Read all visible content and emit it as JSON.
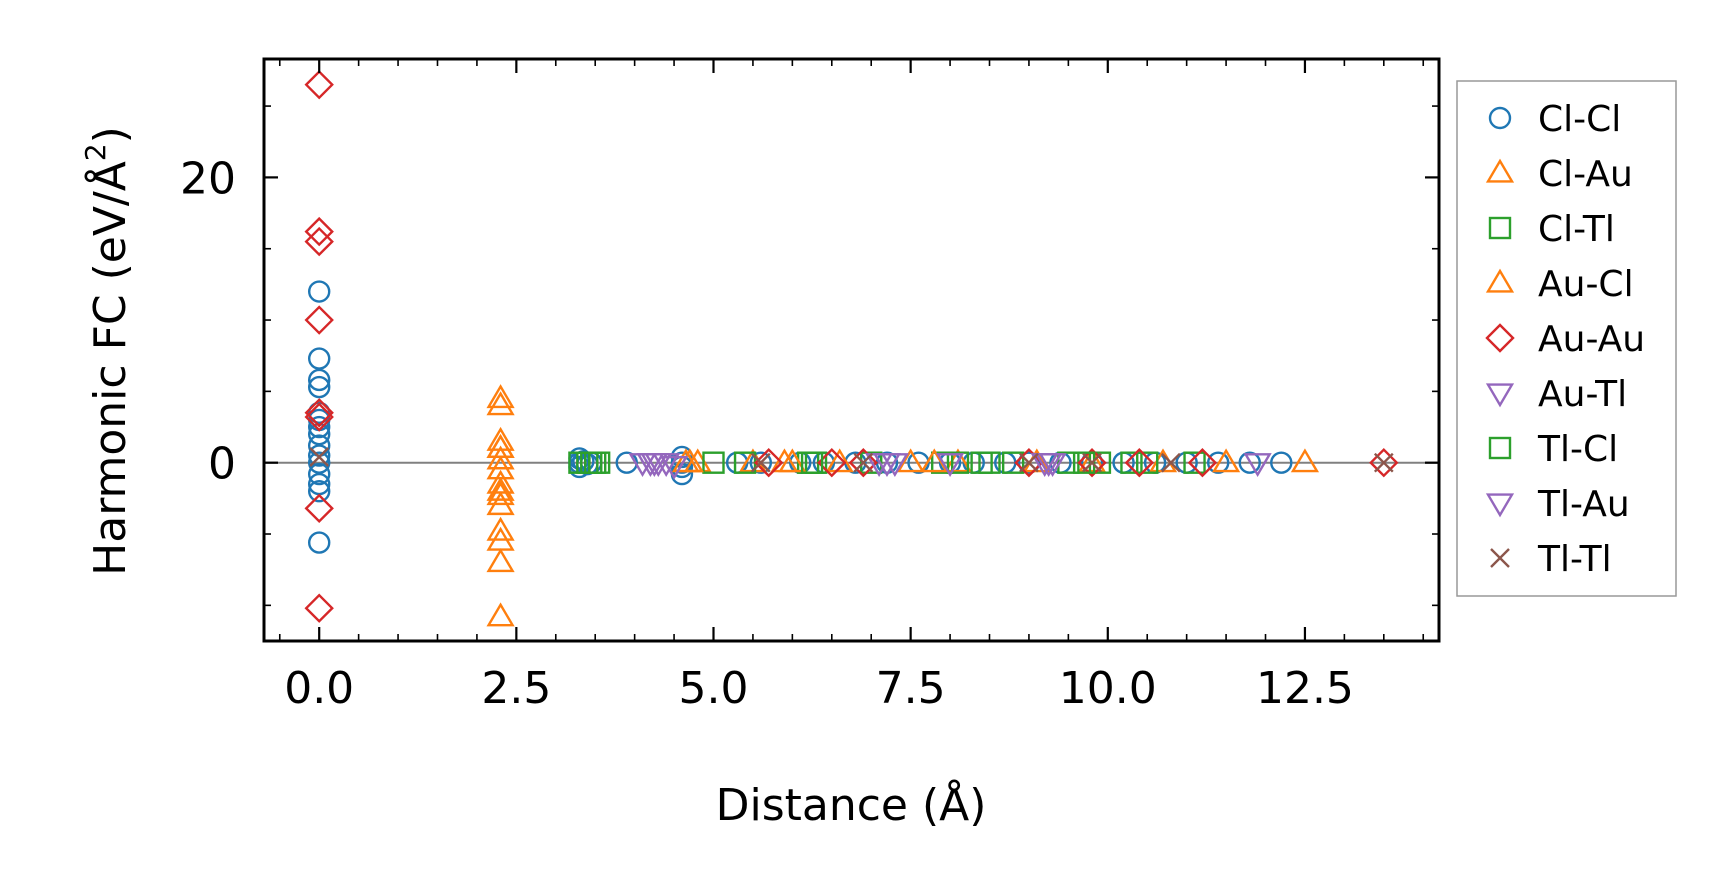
{
  "chart_data": {
    "type": "scatter",
    "title": "",
    "xlabel": "Distance (Å)",
    "ylabel_main": "Harmonic FC (eV/Å",
    "ylabel_sup": "2",
    "ylabel_close": ")",
    "xlim": [
      -0.7,
      14.2
    ],
    "ylim": [
      -12.5,
      28.3
    ],
    "xticks": [
      0.0,
      2.5,
      5.0,
      7.5,
      10.0,
      12.5
    ],
    "xtick_labels": [
      "0.0",
      "2.5",
      "5.0",
      "7.5",
      "10.0",
      "12.5"
    ],
    "yticks": [
      0,
      20
    ],
    "ytick_labels": [
      "0",
      "20"
    ],
    "zero_line": true,
    "grid": false,
    "legend_position": "right outside",
    "series": [
      {
        "name": "Cl-Cl",
        "marker": "circle",
        "color": "#1f77b4",
        "points": [
          [
            0,
            12
          ],
          [
            0,
            7.3
          ],
          [
            0,
            5.8
          ],
          [
            0,
            5.3
          ],
          [
            0,
            3.5
          ],
          [
            0,
            3.0
          ],
          [
            0,
            2.5
          ],
          [
            0,
            2.0
          ],
          [
            0,
            1.2
          ],
          [
            0,
            0.5
          ],
          [
            0,
            0
          ],
          [
            0,
            -0.8
          ],
          [
            0,
            -1.5
          ],
          [
            0,
            -2.0
          ],
          [
            0,
            -5.6
          ],
          [
            3.3,
            0.3
          ],
          [
            3.3,
            0
          ],
          [
            3.3,
            -0.3
          ],
          [
            3.35,
            0.1
          ],
          [
            3.4,
            -0.1
          ],
          [
            3.45,
            0
          ],
          [
            3.9,
            0
          ],
          [
            4.6,
            0.4
          ],
          [
            4.6,
            0
          ],
          [
            4.6,
            -0.3
          ],
          [
            4.6,
            -0.8
          ],
          [
            5.3,
            0
          ],
          [
            5.6,
            0
          ],
          [
            6.1,
            0
          ],
          [
            6.4,
            0
          ],
          [
            6.8,
            0
          ],
          [
            7.2,
            0
          ],
          [
            7.6,
            0
          ],
          [
            8.0,
            0
          ],
          [
            8.3,
            0
          ],
          [
            8.7,
            0
          ],
          [
            9.0,
            0
          ],
          [
            9.4,
            0
          ],
          [
            9.8,
            0
          ],
          [
            10.2,
            0
          ],
          [
            10.6,
            0
          ],
          [
            11.0,
            0
          ],
          [
            11.4,
            0
          ],
          [
            11.8,
            0
          ],
          [
            12.2,
            0
          ]
        ]
      },
      {
        "name": "Cl-Au",
        "marker": "triangle-up",
        "color": "#ff7f0e",
        "points": [
          [
            2.3,
            4.5
          ],
          [
            2.3,
            1.5
          ],
          [
            2.3,
            1.0
          ],
          [
            2.3,
            0.2
          ],
          [
            2.3,
            -0.5
          ],
          [
            2.3,
            -1.5
          ],
          [
            2.3,
            -2.3
          ],
          [
            2.3,
            -3.0
          ],
          [
            2.3,
            -4.8
          ],
          [
            2.3,
            -5.5
          ],
          [
            2.3,
            -7.0
          ],
          [
            2.3,
            -10.8
          ],
          [
            4.65,
            0
          ],
          [
            4.8,
            0
          ],
          [
            5.5,
            0
          ],
          [
            5.9,
            0
          ],
          [
            6.6,
            0
          ],
          [
            7.5,
            0
          ],
          [
            8.1,
            0
          ],
          [
            9.1,
            0
          ],
          [
            9.8,
            0
          ],
          [
            10.7,
            0
          ],
          [
            11.5,
            0
          ],
          [
            12.5,
            0
          ]
        ]
      },
      {
        "name": "Cl-Tl",
        "marker": "square",
        "color": "#2ca02c",
        "points": [
          [
            3.3,
            0
          ],
          [
            3.4,
            0
          ],
          [
            3.5,
            0
          ],
          [
            3.55,
            0
          ],
          [
            5.0,
            0
          ],
          [
            5.4,
            0
          ],
          [
            6.2,
            0
          ],
          [
            6.3,
            0
          ],
          [
            7.0,
            0
          ],
          [
            7.9,
            0
          ],
          [
            8.1,
            0
          ],
          [
            8.5,
            0
          ],
          [
            8.8,
            0
          ],
          [
            9.5,
            0
          ],
          [
            9.9,
            0
          ],
          [
            10.3,
            0
          ],
          [
            10.5,
            0
          ],
          [
            11.1,
            0
          ]
        ]
      },
      {
        "name": "Au-Cl",
        "marker": "triangle-up",
        "color": "#ff7f0e",
        "points": [
          [
            2.3,
            4.0
          ],
          [
            2.3,
            1.0
          ],
          [
            2.3,
            -2.0
          ],
          [
            4.7,
            0
          ],
          [
            6.0,
            0
          ],
          [
            7.8,
            0
          ]
        ]
      },
      {
        "name": "Au-Au",
        "marker": "diamond",
        "color": "#d62728",
        "points": [
          [
            0,
            26.5
          ],
          [
            0,
            16.2
          ],
          [
            0,
            15.5
          ],
          [
            0,
            10.0
          ],
          [
            0,
            3.5
          ],
          [
            0,
            3.2
          ],
          [
            0,
            -3.2
          ],
          [
            0,
            -10.2
          ],
          [
            5.7,
            0
          ],
          [
            6.5,
            0
          ],
          [
            6.9,
            0
          ],
          [
            9.0,
            0
          ],
          [
            9.8,
            0
          ],
          [
            10.4,
            0
          ],
          [
            11.2,
            0
          ],
          [
            13.5,
            0
          ]
        ]
      },
      {
        "name": "Au-Tl",
        "marker": "triangle-down",
        "color": "#9467bd",
        "points": [
          [
            4.1,
            0
          ],
          [
            4.2,
            0
          ],
          [
            4.3,
            0
          ],
          [
            4.4,
            0
          ],
          [
            4.5,
            -0.2
          ],
          [
            7.1,
            0
          ],
          [
            7.3,
            0
          ],
          [
            8.0,
            0
          ],
          [
            9.2,
            0
          ],
          [
            9.3,
            0
          ],
          [
            11.9,
            0
          ]
        ]
      },
      {
        "name": "Tl-Cl",
        "marker": "square",
        "color": "#2ca02c",
        "points": [
          [
            3.45,
            0
          ],
          [
            6.25,
            0
          ],
          [
            8.4,
            0
          ],
          [
            9.7,
            0
          ]
        ]
      },
      {
        "name": "Tl-Au",
        "marker": "triangle-down",
        "color": "#9467bd",
        "points": [
          [
            4.25,
            0
          ],
          [
            7.2,
            0
          ],
          [
            9.25,
            0
          ]
        ]
      },
      {
        "name": "Tl-Tl",
        "marker": "x",
        "color": "#8c564b",
        "points": [
          [
            0,
            0.4
          ],
          [
            5.6,
            0
          ],
          [
            6.9,
            0
          ],
          [
            9.0,
            0
          ],
          [
            9.8,
            0
          ],
          [
            10.8,
            0
          ],
          [
            13.5,
            0
          ]
        ]
      }
    ]
  }
}
